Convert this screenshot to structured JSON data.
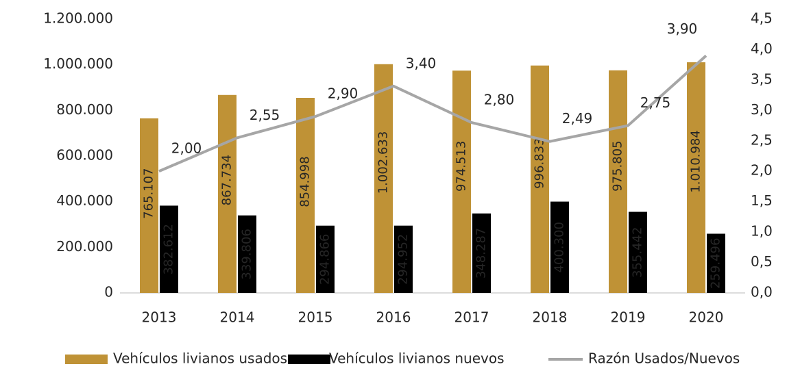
{
  "chart_data": {
    "type": "bar",
    "categories": [
      "2013",
      "2014",
      "2015",
      "2016",
      "2017",
      "2018",
      "2019",
      "2020"
    ],
    "series": [
      {
        "name": "Vehículos livianos usados",
        "type": "bar",
        "color": "#bf9236",
        "values": [
          765107,
          867734,
          854998,
          1002633,
          974513,
          996833,
          975805,
          1010984
        ],
        "value_labels": [
          "765.107",
          "867.734",
          "854.998",
          "1.002.633",
          "974.513",
          "996.833",
          "975.805",
          "1.010.984"
        ]
      },
      {
        "name": "Vehículos livianos nuevos",
        "type": "bar",
        "color": "#000000",
        "values": [
          382612,
          339806,
          294866,
          294952,
          348287,
          400300,
          355442,
          259496
        ],
        "value_labels": [
          "382.612",
          "339.806",
          "294.866",
          "294.952",
          "348.287",
          "400.300",
          "355.442",
          "259.496"
        ]
      },
      {
        "name": "Razón Usados/Nuevos",
        "type": "line",
        "axis": "y2",
        "color": "#a6a6a6",
        "values": [
          2.0,
          2.55,
          2.9,
          3.4,
          2.8,
          2.49,
          2.75,
          3.9
        ],
        "value_labels": [
          "2,00",
          "2,55",
          "2,90",
          "3,40",
          "2,80",
          "2,49",
          "2,75",
          "3,90"
        ]
      }
    ],
    "ylim": [
      0,
      1200000
    ],
    "yticks": [
      0,
      {
        "value": 200000,
        "label": "200.000"
      },
      {
        "value": 400000,
        "label": "400.000"
      },
      {
        "value": 600000,
        "label": "600.000"
      },
      {
        "value": 800000,
        "label": "800.000"
      },
      {
        "value": 1000000,
        "label": "1.000.000"
      },
      {
        "value": 1200000,
        "label": "1.200.000"
      }
    ],
    "y2lim": [
      0,
      4.5
    ],
    "y2ticks": [
      {
        "value": 0,
        "label": "0,0"
      },
      {
        "value": 0.5,
        "label": "0,5"
      },
      {
        "value": 1,
        "label": "1,0"
      },
      {
        "value": 1.5,
        "label": "1,5"
      },
      {
        "value": 2,
        "label": "2,0"
      },
      {
        "value": 2.5,
        "label": "2,5"
      },
      {
        "value": 3,
        "label": "3,0"
      },
      {
        "value": 3.5,
        "label": "3,5"
      },
      {
        "value": 4,
        "label": "4,0"
      },
      {
        "value": 4.5,
        "label": "4,5"
      }
    ],
    "grid": false
  }
}
